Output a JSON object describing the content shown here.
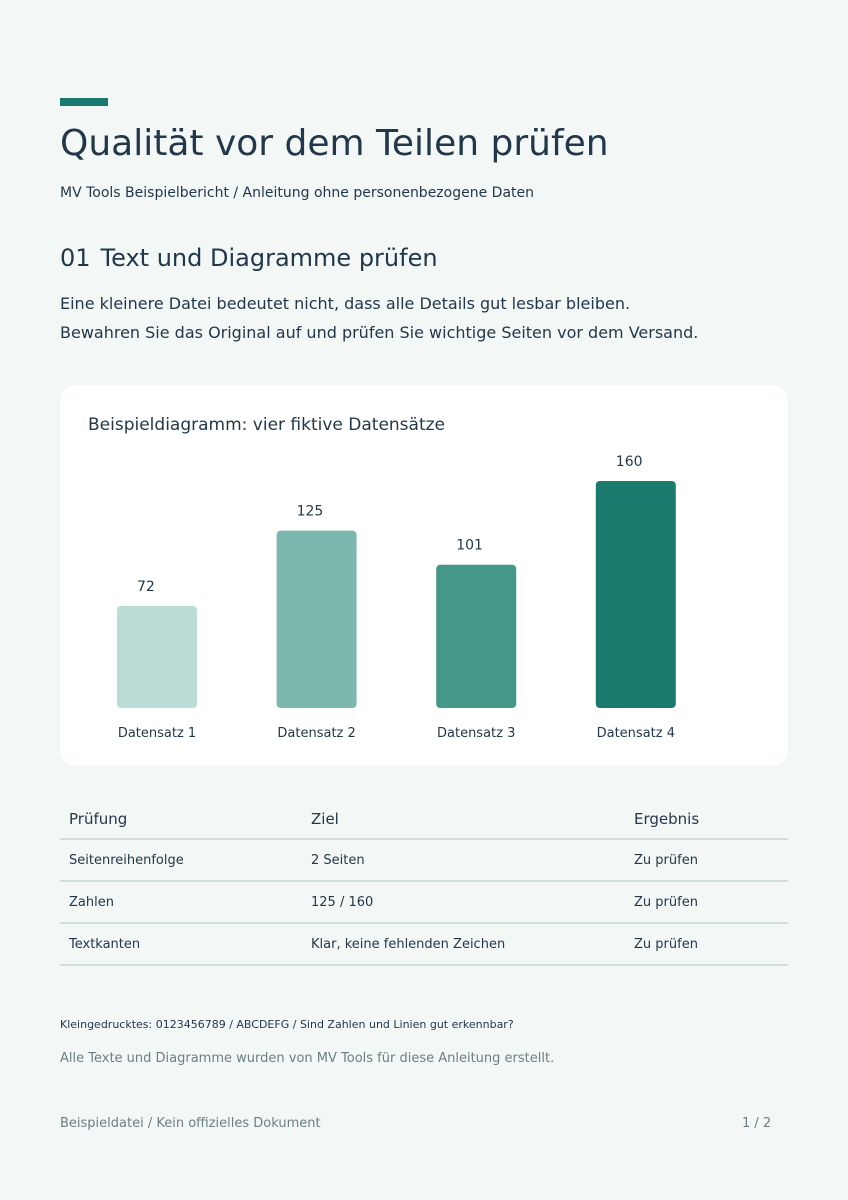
{
  "header": {
    "title": "Qualität vor dem Teilen prüfen",
    "subtitle": "MV Tools Beispielbericht / Anleitung ohne personenbezogene Daten"
  },
  "section": {
    "number": "01",
    "heading": "Text und Diagramme prüfen",
    "paragraphs": [
      "Eine kleinere Datei bedeutet nicht, dass alle Details gut lesbar bleiben.",
      "Bewahren Sie das Original auf und prüfen Sie wichtige Seiten vor dem Versand."
    ]
  },
  "chart_data": {
    "type": "bar",
    "title": "Beispieldiagramm: vier fiktive Datensätze",
    "categories": [
      "Datensatz 1",
      "Datensatz 2",
      "Datensatz 3",
      "Datensatz 4"
    ],
    "values": [
      72,
      125,
      101,
      160
    ],
    "colors": [
      "#bbdcd6",
      "#7cb8ad",
      "#459888",
      "#1a7a6d"
    ],
    "xlabel": "",
    "ylabel": "",
    "ylim": [
      0,
      160
    ],
    "grid": false,
    "data_labels": true
  },
  "table": {
    "headers": [
      "Prüfung",
      "Ziel",
      "Ergebnis"
    ],
    "rows": [
      [
        "Seitenreihenfolge",
        "2 Seiten",
        "Zu prüfen"
      ],
      [
        "Zahlen",
        "125 / 160",
        "Zu prüfen"
      ],
      [
        "Textkanten",
        "Klar, keine fehlenden Zeichen",
        "Zu prüfen"
      ]
    ]
  },
  "notes": {
    "smallprint": "Kleingedrucktes: 0123456789 / ABCDEFG / Sind Zahlen und Linien gut erkennbar?",
    "credit": "Alle Texte und Diagramme wurden von MV Tools für diese Anleitung erstellt."
  },
  "footer": {
    "left": "Beispieldatei / Kein offizielles Dokument",
    "page": "1 / 2"
  },
  "colors": {
    "accent": "#1a7a6d",
    "text": "#22384a",
    "muted": "#6b7f86",
    "background": "#f3f7f6"
  }
}
